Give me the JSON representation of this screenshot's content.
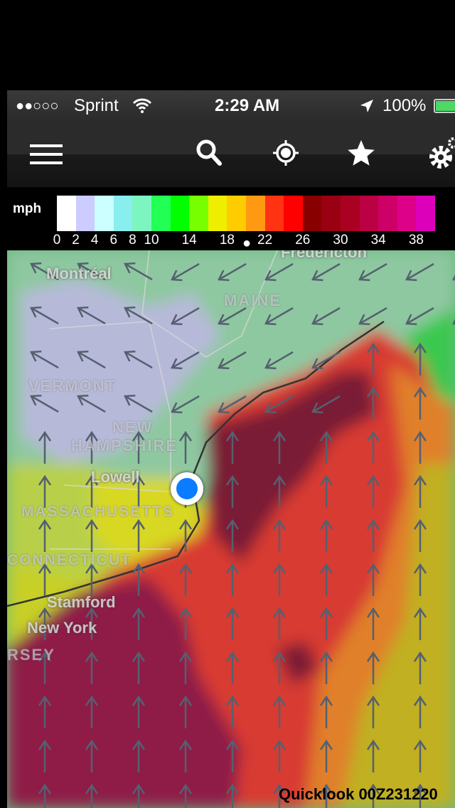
{
  "status_bar": {
    "signal": "●●○○○",
    "carrier": "Sprint",
    "time": "2:29 AM",
    "battery": "100%"
  },
  "nav": {
    "icons": [
      "menu-icon",
      "search-icon",
      "locate-icon",
      "star-icon",
      "settings-icon"
    ]
  },
  "legend": {
    "unit": "mph",
    "ticks": [
      "0",
      "2",
      "4",
      "6",
      "8",
      "10",
      "14",
      "18",
      "22",
      "26",
      "30",
      "34",
      "38"
    ],
    "colors": [
      "#ffffff",
      "#ccccff",
      "#ccffff",
      "#88eeee",
      "#7df5c0",
      "#22ff55",
      "#00ff00",
      "#77ff00",
      "#eeee00",
      "#ffcc00",
      "#ff9911",
      "#ff3311",
      "#ff0000",
      "#880000",
      "#990011",
      "#aa0022",
      "#bb0044",
      "#cc0066",
      "#dd0088",
      "#dd00bb"
    ],
    "page_indicator": "●"
  },
  "map": {
    "labels": {
      "fredericton": "Fredericton",
      "montreal": "Montréal",
      "maine": "MAINE",
      "vermont": "VERMONT",
      "new": "NEW",
      "hampshire": "HAMPSHIRE",
      "lowell": "Lowell",
      "massachusetts": "MASSACHUSETTS",
      "connecticut": "CONNECTICUT",
      "stamford": "Stamford",
      "new_york": "New York",
      "jersey": "RSEY"
    },
    "location_color": "#0a7cff",
    "footer": "Quicklook 00Z231220"
  }
}
